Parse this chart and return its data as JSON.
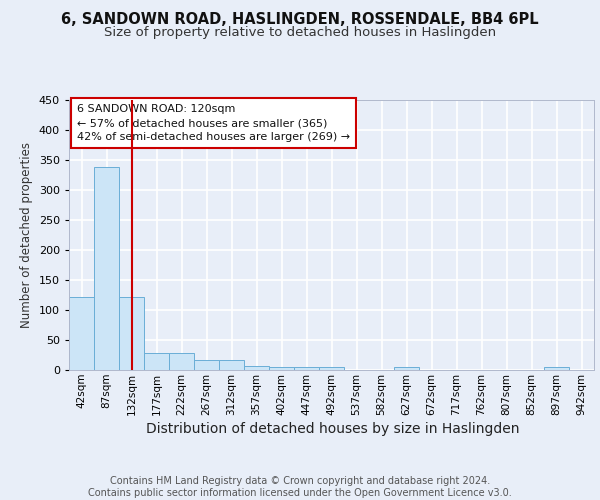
{
  "title1": "6, SANDOWN ROAD, HASLINGDEN, ROSSENDALE, BB4 6PL",
  "title2": "Size of property relative to detached houses in Haslingden",
  "xlabel": "Distribution of detached houses by size in Haslingden",
  "ylabel": "Number of detached properties",
  "bin_labels": [
    "42sqm",
    "87sqm",
    "132sqm",
    "177sqm",
    "222sqm",
    "267sqm",
    "312sqm",
    "357sqm",
    "402sqm",
    "447sqm",
    "492sqm",
    "537sqm",
    "582sqm",
    "627sqm",
    "672sqm",
    "717sqm",
    "762sqm",
    "807sqm",
    "852sqm",
    "897sqm",
    "942sqm"
  ],
  "bin_values": [
    122,
    338,
    122,
    28,
    28,
    17,
    17,
    7,
    5,
    5,
    5,
    0,
    0,
    5,
    0,
    0,
    0,
    0,
    0,
    5,
    0
  ],
  "bar_color": "#cce5f7",
  "bar_edge_color": "#6aaed6",
  "property_line_index": 2,
  "property_line_color": "#cc0000",
  "annotation_line1": "6 SANDOWN ROAD: 120sqm",
  "annotation_line2": "← 57% of detached houses are smaller (365)",
  "annotation_line3": "42% of semi-detached houses are larger (269) →",
  "annotation_box_color": "#ffffff",
  "annotation_box_edge_color": "#cc0000",
  "background_color": "#e8eef8",
  "plot_background_color": "#e8eef8",
  "ylim": [
    0,
    450
  ],
  "yticks": [
    0,
    50,
    100,
    150,
    200,
    250,
    300,
    350,
    400,
    450
  ],
  "footer_text": "Contains HM Land Registry data © Crown copyright and database right 2024.\nContains public sector information licensed under the Open Government Licence v3.0.",
  "grid_color": "#ffffff",
  "title_fontsize": 10.5,
  "subtitle_fontsize": 9.5,
  "xlabel_fontsize": 10,
  "ylabel_fontsize": 8.5,
  "tick_fontsize": 7.5,
  "footer_fontsize": 7
}
